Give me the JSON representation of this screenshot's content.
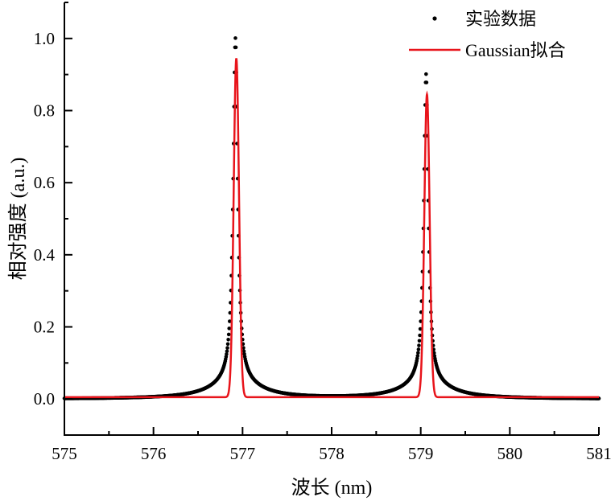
{
  "chart_data": {
    "type": "scatter",
    "xlabel": "波长 (nm)",
    "ylabel": "相对强度 (a.u.)",
    "xlim": [
      575,
      581
    ],
    "ylim": [
      -0.1,
      1.1
    ],
    "xticks": [
      "575",
      "576",
      "577",
      "578",
      "579",
      "580",
      "581"
    ],
    "yticks": [
      "0.0",
      "0.2",
      "0.4",
      "0.6",
      "0.8",
      "1.0"
    ],
    "grid": false,
    "legend_position": "top-right",
    "series": [
      {
        "name": "实验数据",
        "kind": "scatter",
        "color": "#000000",
        "x_step": 0.005,
        "peaks": [
          {
            "center": 576.92,
            "height": 1.0
          },
          {
            "center": 579.06,
            "height": 0.9
          }
        ],
        "profile": "Lorentzian"
      },
      {
        "name": "Gaussian拟合",
        "kind": "line",
        "color": "#e8141b",
        "baseline": 0.005,
        "peaks": [
          {
            "center": 576.93,
            "height": 0.94,
            "fwhm": 0.07
          },
          {
            "center": 579.07,
            "height": 0.84,
            "fwhm": 0.07
          }
        ],
        "profile": "Gaussian"
      }
    ]
  }
}
